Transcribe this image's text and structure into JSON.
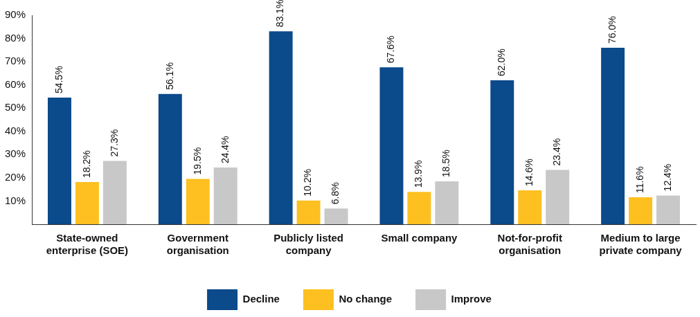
{
  "chart_data": {
    "type": "bar",
    "categories": [
      "State-owned enterprise (SOE)",
      "Government organisation",
      "Publicly listed company",
      "Small company",
      "Not-for-profit organisation",
      "Medium to large private company"
    ],
    "series": [
      {
        "name": "Decline",
        "color": "#0b4a8b",
        "values": [
          54.5,
          56.1,
          83.1,
          67.6,
          62.0,
          76.0
        ],
        "value_labels": [
          "54.5%",
          "56.1%",
          "83.1%",
          "67.6%",
          "62.0%",
          "76.0%"
        ]
      },
      {
        "name": "No change",
        "color": "#fdc020",
        "values": [
          18.2,
          19.5,
          10.2,
          13.9,
          14.6,
          11.6
        ],
        "value_labels": [
          "18.2%",
          "19.5%",
          "10.2%",
          "13.9%",
          "14.6%",
          "11.6%"
        ]
      },
      {
        "name": "Improve",
        "color": "#c8c8c8",
        "values": [
          27.3,
          24.4,
          6.8,
          18.5,
          23.4,
          12.4
        ],
        "value_labels": [
          "27.3%",
          "24.4%",
          "6.8%",
          "18.5%",
          "23.4%",
          "12.4%"
        ]
      }
    ],
    "ylim": [
      0,
      90
    ],
    "yticks": [
      {
        "value": 10,
        "label": "10%"
      },
      {
        "value": 20,
        "label": "20%"
      },
      {
        "value": 30,
        "label": "30%"
      },
      {
        "value": 40,
        "label": "40%"
      },
      {
        "value": 50,
        "label": "50%"
      },
      {
        "value": 60,
        "label": "60%"
      },
      {
        "value": 70,
        "label": "70%"
      },
      {
        "value": 80,
        "label": "80%"
      },
      {
        "value": 90,
        "label": "90%"
      }
    ],
    "grid": false,
    "legend": "bottom"
  }
}
